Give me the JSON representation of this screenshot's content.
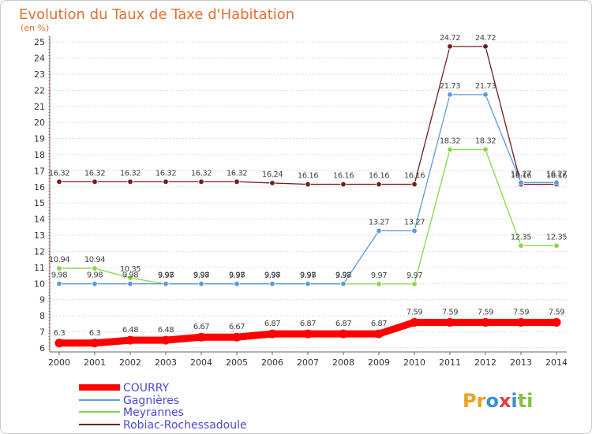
{
  "chart_data": {
    "type": "line",
    "title": "Evolution du Taux de Taxe d'Habitation",
    "subtitle": "(en %)",
    "x": [
      "2000",
      "2001",
      "2002",
      "2003",
      "2004",
      "2005",
      "2006",
      "2007",
      "2008",
      "2009",
      "2010",
      "2011",
      "2012",
      "2013",
      "2014"
    ],
    "ylim": [
      6,
      25
    ],
    "yticks": [
      6,
      7,
      8,
      9,
      10,
      11,
      12,
      13,
      14,
      15,
      16,
      17,
      18,
      19,
      20,
      21,
      22,
      23,
      24,
      25
    ],
    "grid": "horizontal",
    "legend_position": "bottom-left",
    "series": [
      {
        "name": "COURRY",
        "color": "#ff0000",
        "values": [
          6.3,
          6.3,
          6.48,
          6.48,
          6.67,
          6.67,
          6.87,
          6.87,
          6.87,
          6.87,
          7.59,
          7.59,
          7.59,
          7.59,
          7.59
        ],
        "labels": [
          "6.3",
          "6.3",
          "6.48",
          "6.48",
          "6.67",
          "6.67",
          "6.87",
          "6.87",
          "6.87",
          "6.87",
          "7.59",
          "7.59",
          "7.59",
          "7.59",
          "7.59"
        ]
      },
      {
        "name": "Gagnières",
        "color": "#5b9bd5",
        "values": [
          9.98,
          9.98,
          9.98,
          9.98,
          9.98,
          9.98,
          9.98,
          9.98,
          9.98,
          13.27,
          13.27,
          21.73,
          21.73,
          16.27,
          16.27
        ],
        "labels": [
          "9.98",
          "9.98",
          "9.98",
          "9.98",
          "9.98",
          "9.98",
          "9.98",
          "9.98",
          "9.98",
          "13.27",
          "13.27",
          "21.73",
          "21.73",
          "16.27",
          "16.27"
        ]
      },
      {
        "name": "Meyrannes",
        "color": "#88d64a",
        "values": [
          10.94,
          10.94,
          10.35,
          9.97,
          9.97,
          9.97,
          9.97,
          9.97,
          9.97,
          9.97,
          9.97,
          18.32,
          18.32,
          12.35,
          12.35
        ],
        "labels": [
          "10.94",
          "10.94",
          "10.35",
          "9.97",
          "9.97",
          "9.97",
          "9.97",
          "9.97",
          "9.97",
          "9.97",
          "9.97",
          "18.32",
          "18.32",
          "12.35",
          "12.35"
        ]
      },
      {
        "name": "Robiac-Rochessadoule",
        "color": "#6e1f1f",
        "values": [
          16.32,
          16.32,
          16.32,
          16.32,
          16.32,
          16.32,
          16.24,
          16.16,
          16.16,
          16.16,
          16.16,
          24.72,
          24.72,
          16.16,
          16.16
        ],
        "labels": [
          "16.32",
          "16.32",
          "16.32",
          "16.32",
          "16.32",
          "16.32",
          "16.24",
          "16.16",
          "16.16",
          "16.16",
          "16.16",
          "24.72",
          "24.72",
          "16.16",
          "16.16"
        ]
      }
    ]
  },
  "logo": {
    "parts": [
      {
        "text": "Pr",
        "color": "#f0a020"
      },
      {
        "text": "o",
        "color": "#3a8fd8"
      },
      {
        "text": "x",
        "color": "#e04040"
      },
      {
        "text": "i",
        "color": "#3a8fd8"
      },
      {
        "text": "ti",
        "color": "#88c040"
      }
    ]
  }
}
